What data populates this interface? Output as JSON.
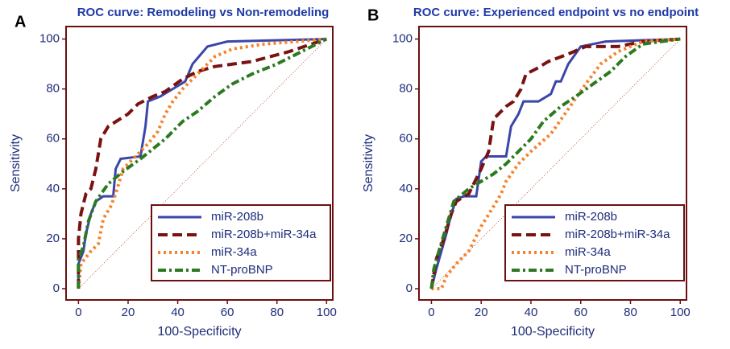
{
  "chart_data": [
    {
      "type": "line",
      "panel_label": "A",
      "title": "ROC curve: Remodeling vs Non-remodeling",
      "x_label": "100-Specificity",
      "y_label": "Sensitivity",
      "xlim": [
        -5,
        102.5
      ],
      "ylim": [
        -4.5,
        105
      ],
      "xticks": [
        0,
        20,
        40,
        60,
        80,
        100
      ],
      "yticks": [
        0,
        20,
        40,
        60,
        80,
        100
      ],
      "legend": "lower right",
      "series": [
        {
          "name": "miR-208b",
          "color": "#3a46a8",
          "line_style": "solid",
          "x": [
            0,
            0,
            2,
            3,
            5,
            7,
            10,
            14,
            15,
            17,
            25,
            27,
            28,
            33,
            38,
            43,
            46,
            52,
            60,
            100
          ],
          "values": [
            0,
            10,
            15,
            22,
            30,
            35,
            37,
            37,
            48,
            52,
            53,
            65,
            75,
            77,
            80,
            83,
            90,
            97,
            99,
            100
          ]
        },
        {
          "name": "miR-208b+miR-34a",
          "color": "#7a1212",
          "line_style": "dashed",
          "x": [
            0,
            0,
            1,
            3,
            5,
            7,
            9,
            12,
            20,
            24,
            30,
            35,
            42,
            48,
            55,
            70,
            85,
            100
          ],
          "values": [
            0,
            20,
            30,
            38,
            40,
            48,
            60,
            65,
            70,
            74,
            77,
            79,
            84,
            87,
            89,
            91,
            95,
            100
          ]
        },
        {
          "name": "miR-34a",
          "color": "#f5822a",
          "line_style": "dotted",
          "x": [
            0,
            1,
            5,
            8,
            10,
            13,
            15,
            18,
            23,
            28,
            32,
            35,
            38,
            42,
            48,
            55,
            62,
            75,
            100
          ],
          "values": [
            0,
            10,
            15,
            18,
            28,
            33,
            38,
            48,
            53,
            58,
            63,
            70,
            75,
            80,
            86,
            93,
            96,
            98,
            100
          ]
        },
        {
          "name": "NT-proBNP",
          "color": "#2c7a20",
          "line_style": "dashdot",
          "x": [
            0,
            0,
            2,
            4,
            7,
            12,
            18,
            25,
            30,
            35,
            42,
            48,
            55,
            62,
            70,
            80,
            90,
            100
          ],
          "values": [
            0,
            12,
            17,
            27,
            35,
            42,
            47,
            52,
            56,
            60,
            67,
            71,
            77,
            82,
            86,
            90,
            95,
            100
          ]
        }
      ]
    },
    {
      "type": "line",
      "panel_label": "B",
      "title": "ROC curve: Experienced endpoint vs no endpoint",
      "x_label": "100-Specificity",
      "y_label": "Sensitivity",
      "xlim": [
        -5,
        102.5
      ],
      "ylim": [
        -4.5,
        105
      ],
      "xticks": [
        0,
        20,
        40,
        60,
        80,
        100
      ],
      "yticks": [
        0,
        20,
        40,
        60,
        80,
        100
      ],
      "legend": "lower right",
      "series": [
        {
          "name": "miR-208b",
          "color": "#3a46a8",
          "line_style": "solid",
          "x": [
            0,
            2,
            4,
            6,
            8,
            10,
            13,
            18,
            20,
            22,
            30,
            32,
            35,
            37,
            43,
            48,
            50,
            52,
            55,
            60,
            70,
            100
          ],
          "values": [
            0,
            8,
            15,
            22,
            30,
            36,
            37,
            37,
            51,
            53,
            53,
            65,
            70,
            75,
            75,
            78,
            83,
            83,
            90,
            97,
            99,
            100
          ]
        },
        {
          "name": "miR-208b+miR-34a",
          "color": "#7a1212",
          "line_style": "dashed",
          "x": [
            0,
            2,
            5,
            8,
            10,
            15,
            20,
            23,
            25,
            30,
            33,
            36,
            38,
            42,
            47,
            55,
            62,
            75,
            85,
            100
          ],
          "values": [
            0,
            12,
            20,
            30,
            35,
            38,
            48,
            55,
            68,
            73,
            75,
            80,
            86,
            88,
            91,
            94,
            97,
            97,
            99,
            100
          ]
        },
        {
          "name": "miR-34a",
          "color": "#f5822a",
          "line_style": "dotted",
          "x": [
            0,
            4,
            6,
            10,
            15,
            20,
            25,
            28,
            30,
            35,
            40,
            48,
            55,
            62,
            68,
            75,
            85,
            100
          ],
          "values": [
            0,
            0,
            5,
            10,
            15,
            25,
            33,
            38,
            43,
            50,
            55,
            62,
            72,
            82,
            90,
            95,
            99,
            100
          ]
        },
        {
          "name": "NT-proBNP",
          "color": "#2c7a20",
          "line_style": "dashdot",
          "x": [
            0,
            1,
            3,
            6,
            9,
            15,
            20,
            25,
            30,
            35,
            40,
            45,
            52,
            58,
            65,
            72,
            78,
            85,
            100
          ],
          "values": [
            0,
            8,
            15,
            25,
            35,
            40,
            43,
            46,
            50,
            55,
            60,
            67,
            73,
            77,
            82,
            87,
            93,
            98,
            100
          ]
        }
      ]
    }
  ]
}
